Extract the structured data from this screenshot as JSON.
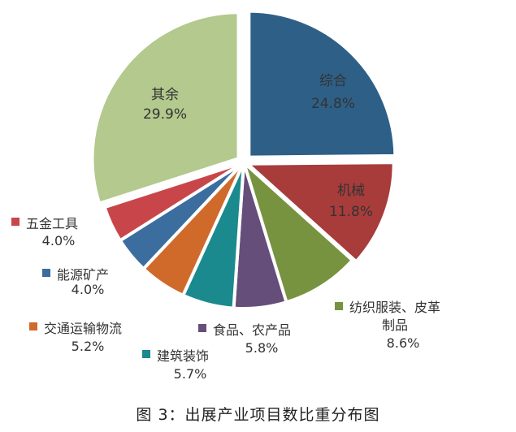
{
  "chart_data": {
    "type": "pie",
    "title": "图 3：出展产业项目数比重分布图",
    "slices": [
      {
        "name": "综合",
        "value_label": "24.8%",
        "value": 24.8,
        "color": "#2e5f87",
        "inside": true
      },
      {
        "name": "机械",
        "value_label": "11.8%",
        "value": 11.8,
        "color": "#a83c3b",
        "inside": true
      },
      {
        "name": "纺织服装、皮革",
        "name2": "制品",
        "value_label": "8.6%",
        "value": 8.6,
        "color": "#78933f",
        "inside": false
      },
      {
        "name": "食品、农产品",
        "value_label": "5.8%",
        "value": 5.8,
        "color": "#664e7b",
        "inside": false
      },
      {
        "name": "建筑装饰",
        "value_label": "5.7%",
        "value": 5.7,
        "color": "#1a8a8e",
        "inside": false
      },
      {
        "name": "交通运输物流",
        "value_label": "5.2%",
        "value": 5.2,
        "color": "#cf6a2b",
        "inside": false
      },
      {
        "name": "能源矿产",
        "value_label": "4.0%",
        "value": 4.0,
        "color": "#3b6d9f",
        "inside": false
      },
      {
        "name": "五金工具",
        "value_label": "4.0%",
        "value": 4.0,
        "color": "#c8464a",
        "inside": false
      },
      {
        "name": "其余",
        "value_label": "29.9%",
        "value": 29.9,
        "color": "#b3c98d",
        "inside": true
      }
    ]
  }
}
